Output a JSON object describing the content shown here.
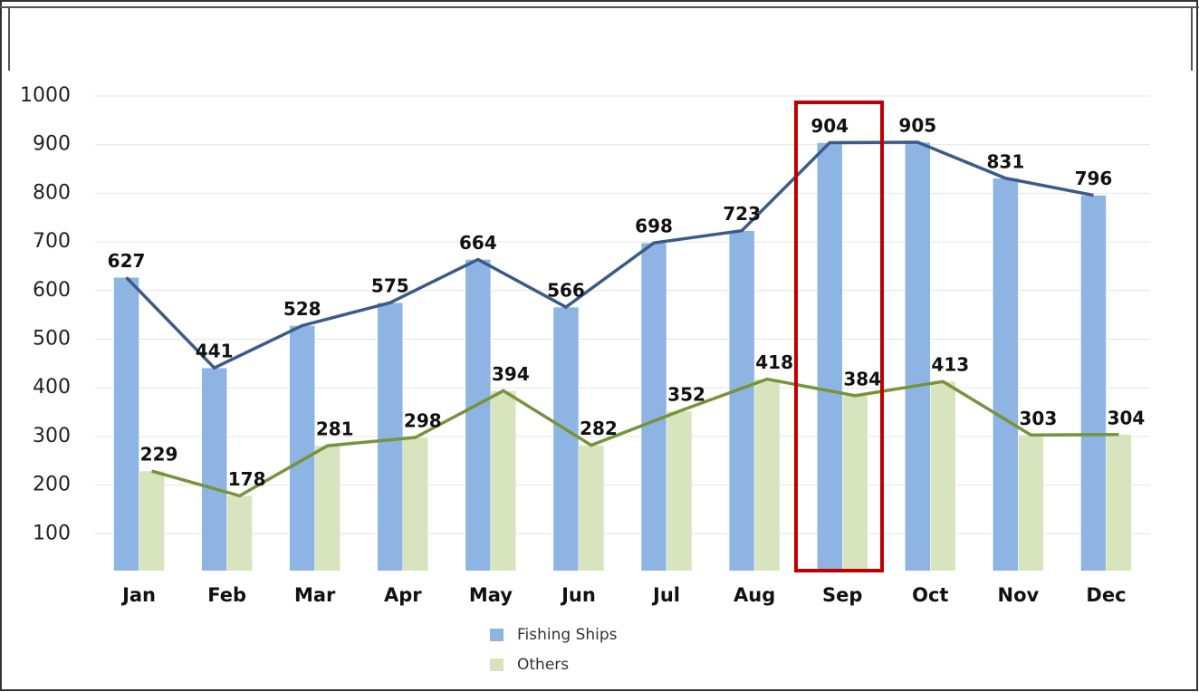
{
  "chart_data": {
    "type": "bar_line",
    "categories": [
      "Jan",
      "Feb",
      "Mar",
      "Apr",
      "May",
      "Jun",
      "Jul",
      "Aug",
      "Sep",
      "Oct",
      "Nov",
      "Dec"
    ],
    "series": [
      {
        "name": "Fishing Ships",
        "color": "#8db4e2",
        "line_color": "#3b5a8a",
        "values": [
          627,
          441,
          528,
          575,
          664,
          566,
          698,
          723,
          904,
          905,
          831,
          796
        ]
      },
      {
        "name": "Others",
        "color": "#d7e4bd",
        "line_color": "#77933c",
        "values": [
          229,
          178,
          281,
          298,
          394,
          282,
          352,
          418,
          384,
          413,
          303,
          304
        ]
      }
    ],
    "ylim": [
      0,
      1000
    ],
    "yticks": [
      100,
      200,
      300,
      400,
      500,
      600,
      700,
      800,
      900,
      1000
    ],
    "grid": true
  }
}
